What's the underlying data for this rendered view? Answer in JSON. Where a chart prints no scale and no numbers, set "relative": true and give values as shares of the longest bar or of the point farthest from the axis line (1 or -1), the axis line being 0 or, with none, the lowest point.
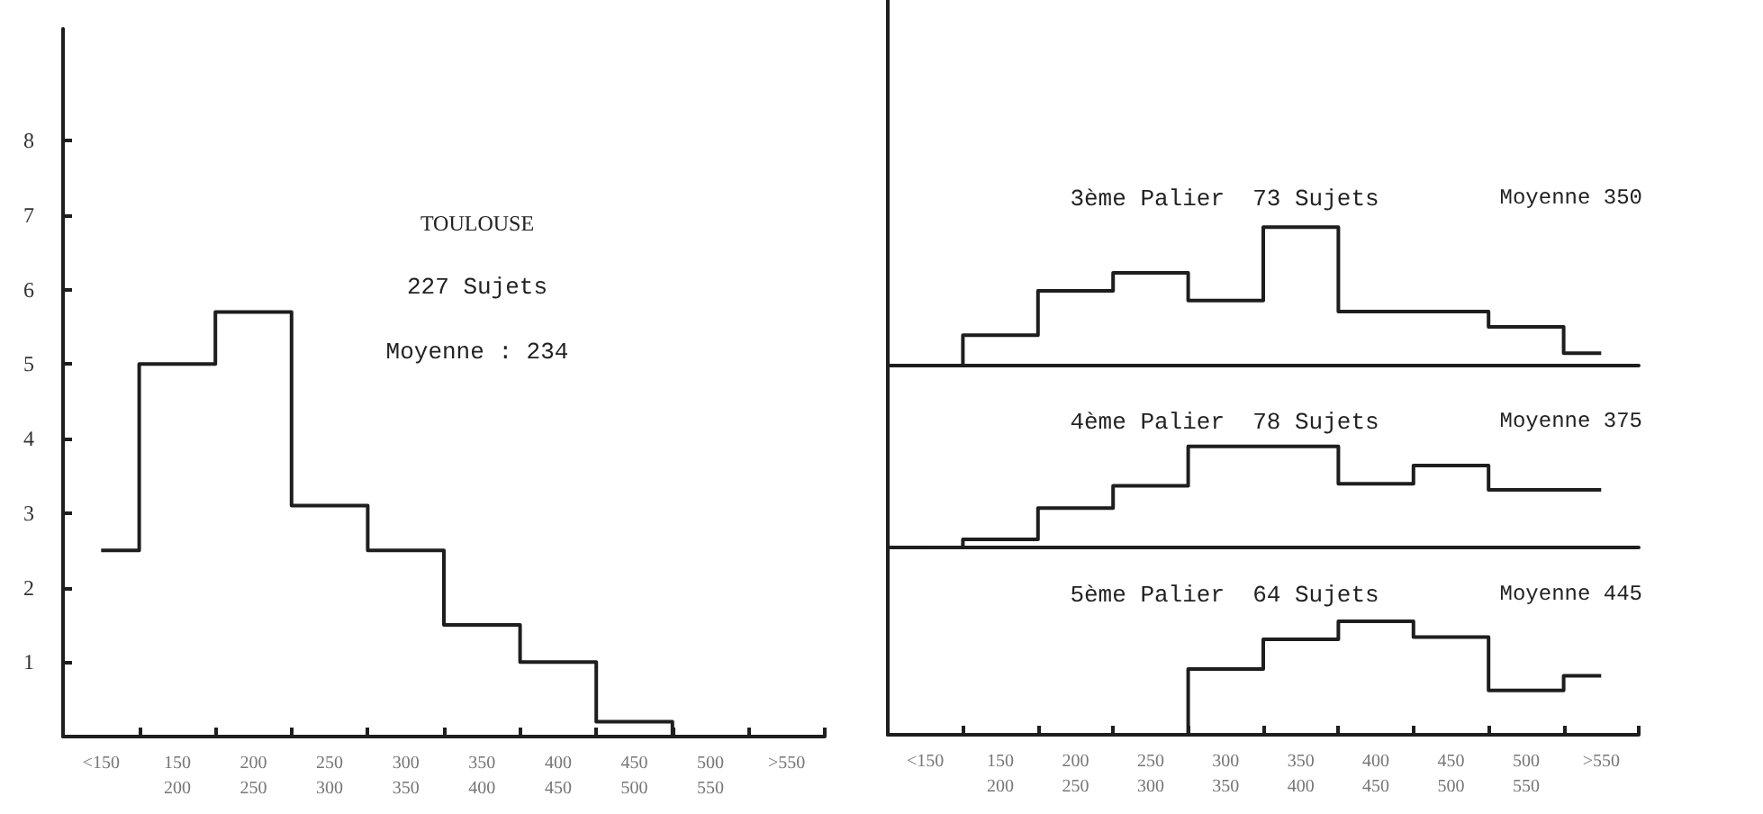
{
  "chart_data": [
    {
      "type": "step",
      "categories": [
        "<150",
        "150\n200",
        "200\n250",
        "250\n300",
        "300\n350",
        "350\n400",
        "400\n450",
        "450\n500",
        "500\n550",
        ">550"
      ],
      "series": [
        {
          "color": "#1e1e1e",
          "values": [
            2.5,
            5.0,
            5.7,
            3.1,
            2.5,
            1.5,
            1.0,
            0.2,
            0,
            0
          ]
        }
      ],
      "ylim": [
        0,
        9.5
      ],
      "yticks": [
        1,
        2,
        3,
        4,
        5,
        6,
        7,
        8
      ],
      "annotations": [
        "TOULOUSE",
        "227 Sujets",
        "Moyenne : 234"
      ]
    },
    {
      "type": "step",
      "relative": true,
      "tick_labels": false,
      "title": "3ème Palier  73 Sujets",
      "categories": [
        null,
        null,
        null,
        null,
        null,
        null,
        null,
        null,
        null,
        null
      ],
      "series": [
        {
          "color": "#1e1e1e",
          "values": [
            0,
            0.22,
            0.54,
            0.67,
            0.47,
            1,
            0.39,
            0.39,
            0.28,
            0.09
          ]
        }
      ],
      "annotations": [
        "Moyenne 350"
      ]
    },
    {
      "type": "step",
      "relative": true,
      "tick_labels": false,
      "title": "4ème Palier  78 Sujets",
      "categories": [
        null,
        null,
        null,
        null,
        null,
        null,
        null,
        null,
        null,
        null
      ],
      "series": [
        {
          "color": "#1e1e1e",
          "values": [
            0,
            0.08,
            0.39,
            0.61,
            1,
            1,
            0.63,
            0.81,
            0.57,
            0.57
          ]
        }
      ],
      "annotations": [
        "Moyenne 375"
      ]
    },
    {
      "type": "step",
      "relative": true,
      "tick_labels": "x",
      "title": "5ème Palier  64 Sujets",
      "categories": [
        "<150",
        "150\n200",
        "200\n250",
        "250\n300",
        "300\n350",
        "350\n400",
        "400\n450",
        "450\n500",
        "500\n550",
        ">550"
      ],
      "series": [
        {
          "color": "#1e1e1e",
          "values": [
            0,
            0,
            0,
            0,
            0.58,
            0.84,
            1,
            0.86,
            0.39,
            0.52
          ]
        }
      ],
      "annotations": [
        "Moyenne 445"
      ]
    }
  ]
}
